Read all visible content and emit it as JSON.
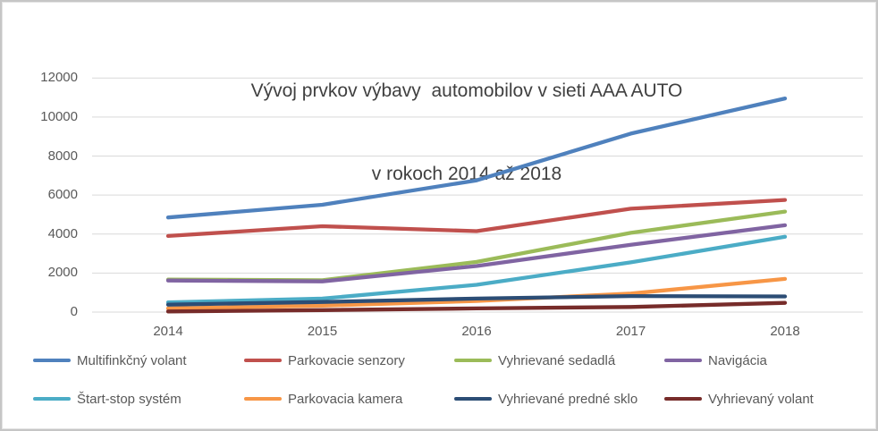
{
  "chart_data": {
    "type": "line",
    "title_line1": "Vývoj prvkov výbavy  automobilov v sieti AAA AUTO",
    "title_line2": "v rokoch 2014 až 2018",
    "categories": [
      "2014",
      "2015",
      "2016",
      "2017",
      "2018"
    ],
    "yticks": [
      "12000",
      "10000",
      "8000",
      "6000",
      "4000",
      "2000",
      "0"
    ],
    "ylim": [
      0,
      12000
    ],
    "grid": true,
    "gridline_color": "#d9d9d9",
    "legend_position": "bottom",
    "text_color": "#595959",
    "title_color": "#404040",
    "series": [
      {
        "name": "Multifinkčný volant",
        "color": "#4F81BD",
        "values": [
          4850,
          5500,
          6750,
          9150,
          10950
        ]
      },
      {
        "name": "Parkovacie senzory",
        "color": "#C0504D",
        "values": [
          3900,
          4400,
          4150,
          5300,
          5750
        ]
      },
      {
        "name": "Vyhrievané sedadlá",
        "color": "#9BBB59",
        "values": [
          1670,
          1630,
          2570,
          4060,
          5150
        ]
      },
      {
        "name": "Navigácia",
        "color": "#8064A2",
        "values": [
          1620,
          1570,
          2360,
          3450,
          4450
        ]
      },
      {
        "name": "Štart-stop systém",
        "color": "#4BACC6",
        "values": [
          500,
          690,
          1400,
          2550,
          3860
        ]
      },
      {
        "name": "Parkovacia kamera",
        "color": "#F79646",
        "values": [
          190,
          330,
          570,
          950,
          1700
        ]
      },
      {
        "name": "Vyhrievané predné sklo",
        "color": "#2C4D75",
        "values": [
          380,
          520,
          690,
          820,
          800
        ]
      },
      {
        "name": "Vyhrievaný volant",
        "color": "#772C2A",
        "values": [
          30,
          100,
          190,
          260,
          470
        ]
      }
    ]
  }
}
